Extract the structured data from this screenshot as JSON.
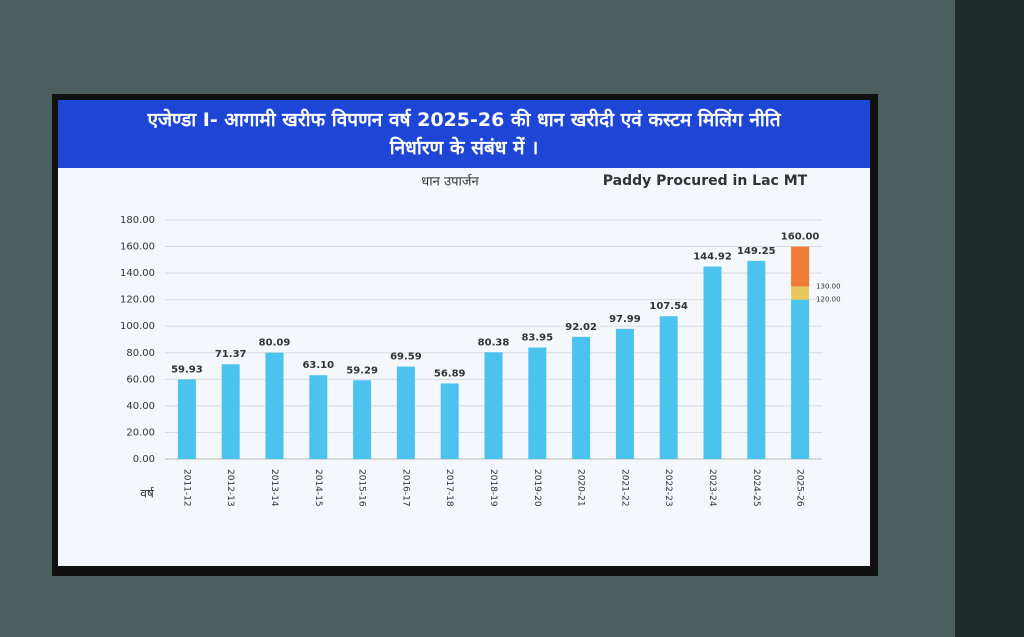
{
  "header": {
    "title": "एजेण्डा I- आगामी खरीफ विपणन वर्ष 2025-26 की धान खरीदी एवं कस्टम मिलिंग नीति निर्धारण के संबंध में ।"
  },
  "chart_data": {
    "type": "bar",
    "title": "धान उपार्जन",
    "subtitle": "Paddy Procured in Lac MT",
    "x_label": "वर्ष",
    "categories": [
      "2011-12",
      "2012-13",
      "2013-14",
      "2014-15",
      "2015-16",
      "2016-17",
      "2017-18",
      "2018-19",
      "2019-20",
      "2020-21",
      "2021-22",
      "2022-23",
      "2023-24",
      "2024-25",
      "2025-26"
    ],
    "series": [
      {
        "color": "#4cc3ef",
        "values": [
          59.93,
          71.37,
          80.09,
          63.1,
          59.29,
          69.59,
          56.89,
          80.38,
          83.95,
          92.02,
          97.99,
          107.54,
          144.92,
          149.25,
          120
        ],
        "value_labels": [
          "59.93",
          "71.37",
          "80.09",
          "63.10",
          "59.29",
          "69.59",
          "56.89",
          "80.38",
          "83.95",
          "92.02",
          "97.99",
          "107.54",
          "144.92",
          "149.25",
          null
        ]
      },
      {
        "color": "#e8c75e",
        "values": [
          null,
          null,
          null,
          null,
          null,
          null,
          null,
          null,
          null,
          null,
          null,
          null,
          null,
          null,
          10
        ]
      },
      {
        "color": "#f07b35",
        "values": [
          null,
          null,
          null,
          null,
          null,
          null,
          null,
          null,
          null,
          null,
          null,
          null,
          null,
          null,
          30
        ]
      }
    ],
    "annotations": [
      {
        "value": 120,
        "label": "120.00"
      },
      {
        "value": 130,
        "label": "130.00"
      },
      {
        "value": 160,
        "label": "160.00"
      }
    ],
    "ylim": [
      0,
      180
    ],
    "yticks": [
      {
        "value": 0,
        "label": "0.00"
      },
      {
        "value": 20,
        "label": "20.00"
      },
      {
        "value": 40,
        "label": "40.00"
      },
      {
        "value": 60,
        "label": "60.00"
      },
      {
        "value": 80,
        "label": "80.00"
      },
      {
        "value": 100,
        "label": "100.00"
      },
      {
        "value": 120,
        "label": "120.00"
      },
      {
        "value": 140,
        "label": "140.00"
      },
      {
        "value": 160,
        "label": "160.00"
      },
      {
        "value": 180,
        "label": "180.00"
      }
    ],
    "grid": true
  }
}
